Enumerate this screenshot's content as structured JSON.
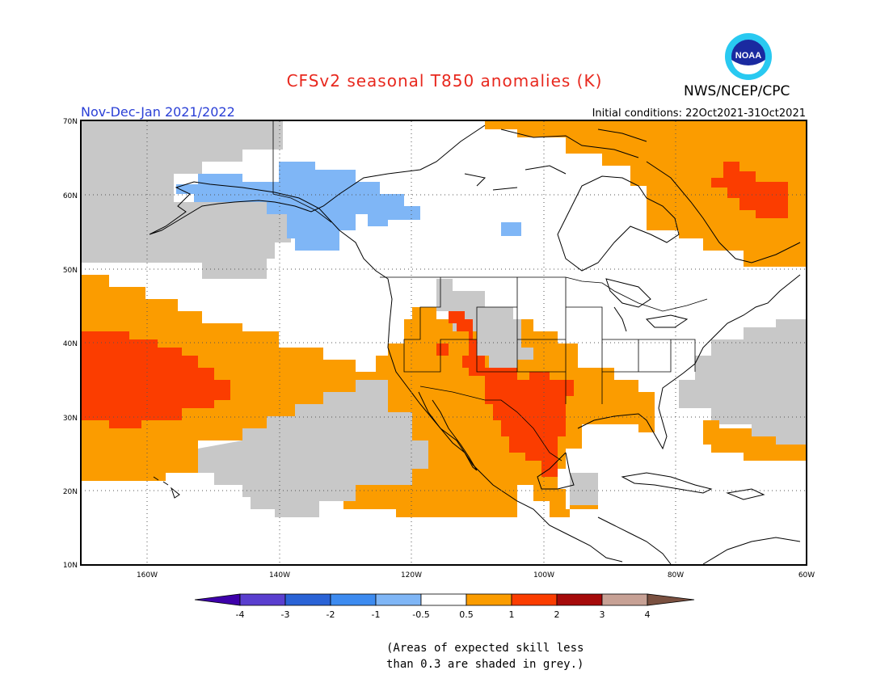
{
  "header": {
    "title": "CFSv2 seasonal T850 anomalies (K)",
    "organization": "NWS/NCEP/CPC",
    "logo_text": "NOAA",
    "period": "Nov-Dec-Jan 2021/2022",
    "initial_conditions": "Initial conditions: 22Oct2021-31Oct2021"
  },
  "map": {
    "lat_labels": [
      "70N",
      "60N",
      "50N",
      "40N",
      "30N",
      "20N",
      "10N"
    ],
    "lon_labels": [
      "160W",
      "140W",
      "120W",
      "100W",
      "80W",
      "60W"
    ]
  },
  "colorbar": {
    "tick_labels": [
      "-4",
      "-3",
      "-2",
      "-1",
      "-0.5",
      "0.5",
      "1",
      "2",
      "3",
      "4"
    ],
    "colors": [
      "#3e00aa",
      "#5a3fcf",
      "#2a63d6",
      "#3d8bf0",
      "#7fb6f6",
      "#ffffff",
      "#fb9c00",
      "#fb3d00",
      "#a50a0a",
      "#c7a195",
      "#7a5040"
    ]
  },
  "note": {
    "line1": "(Areas of expected skill less",
    "line2": "than 0.3 are shaded in grey.)"
  },
  "colors": {
    "grey": "#c8c8c8",
    "orange": "#fb9c00",
    "red": "#fb3d00",
    "light_blue": "#7fb6f6",
    "title_red": "#e8281e",
    "period_blue": "#2a3fd6"
  }
}
